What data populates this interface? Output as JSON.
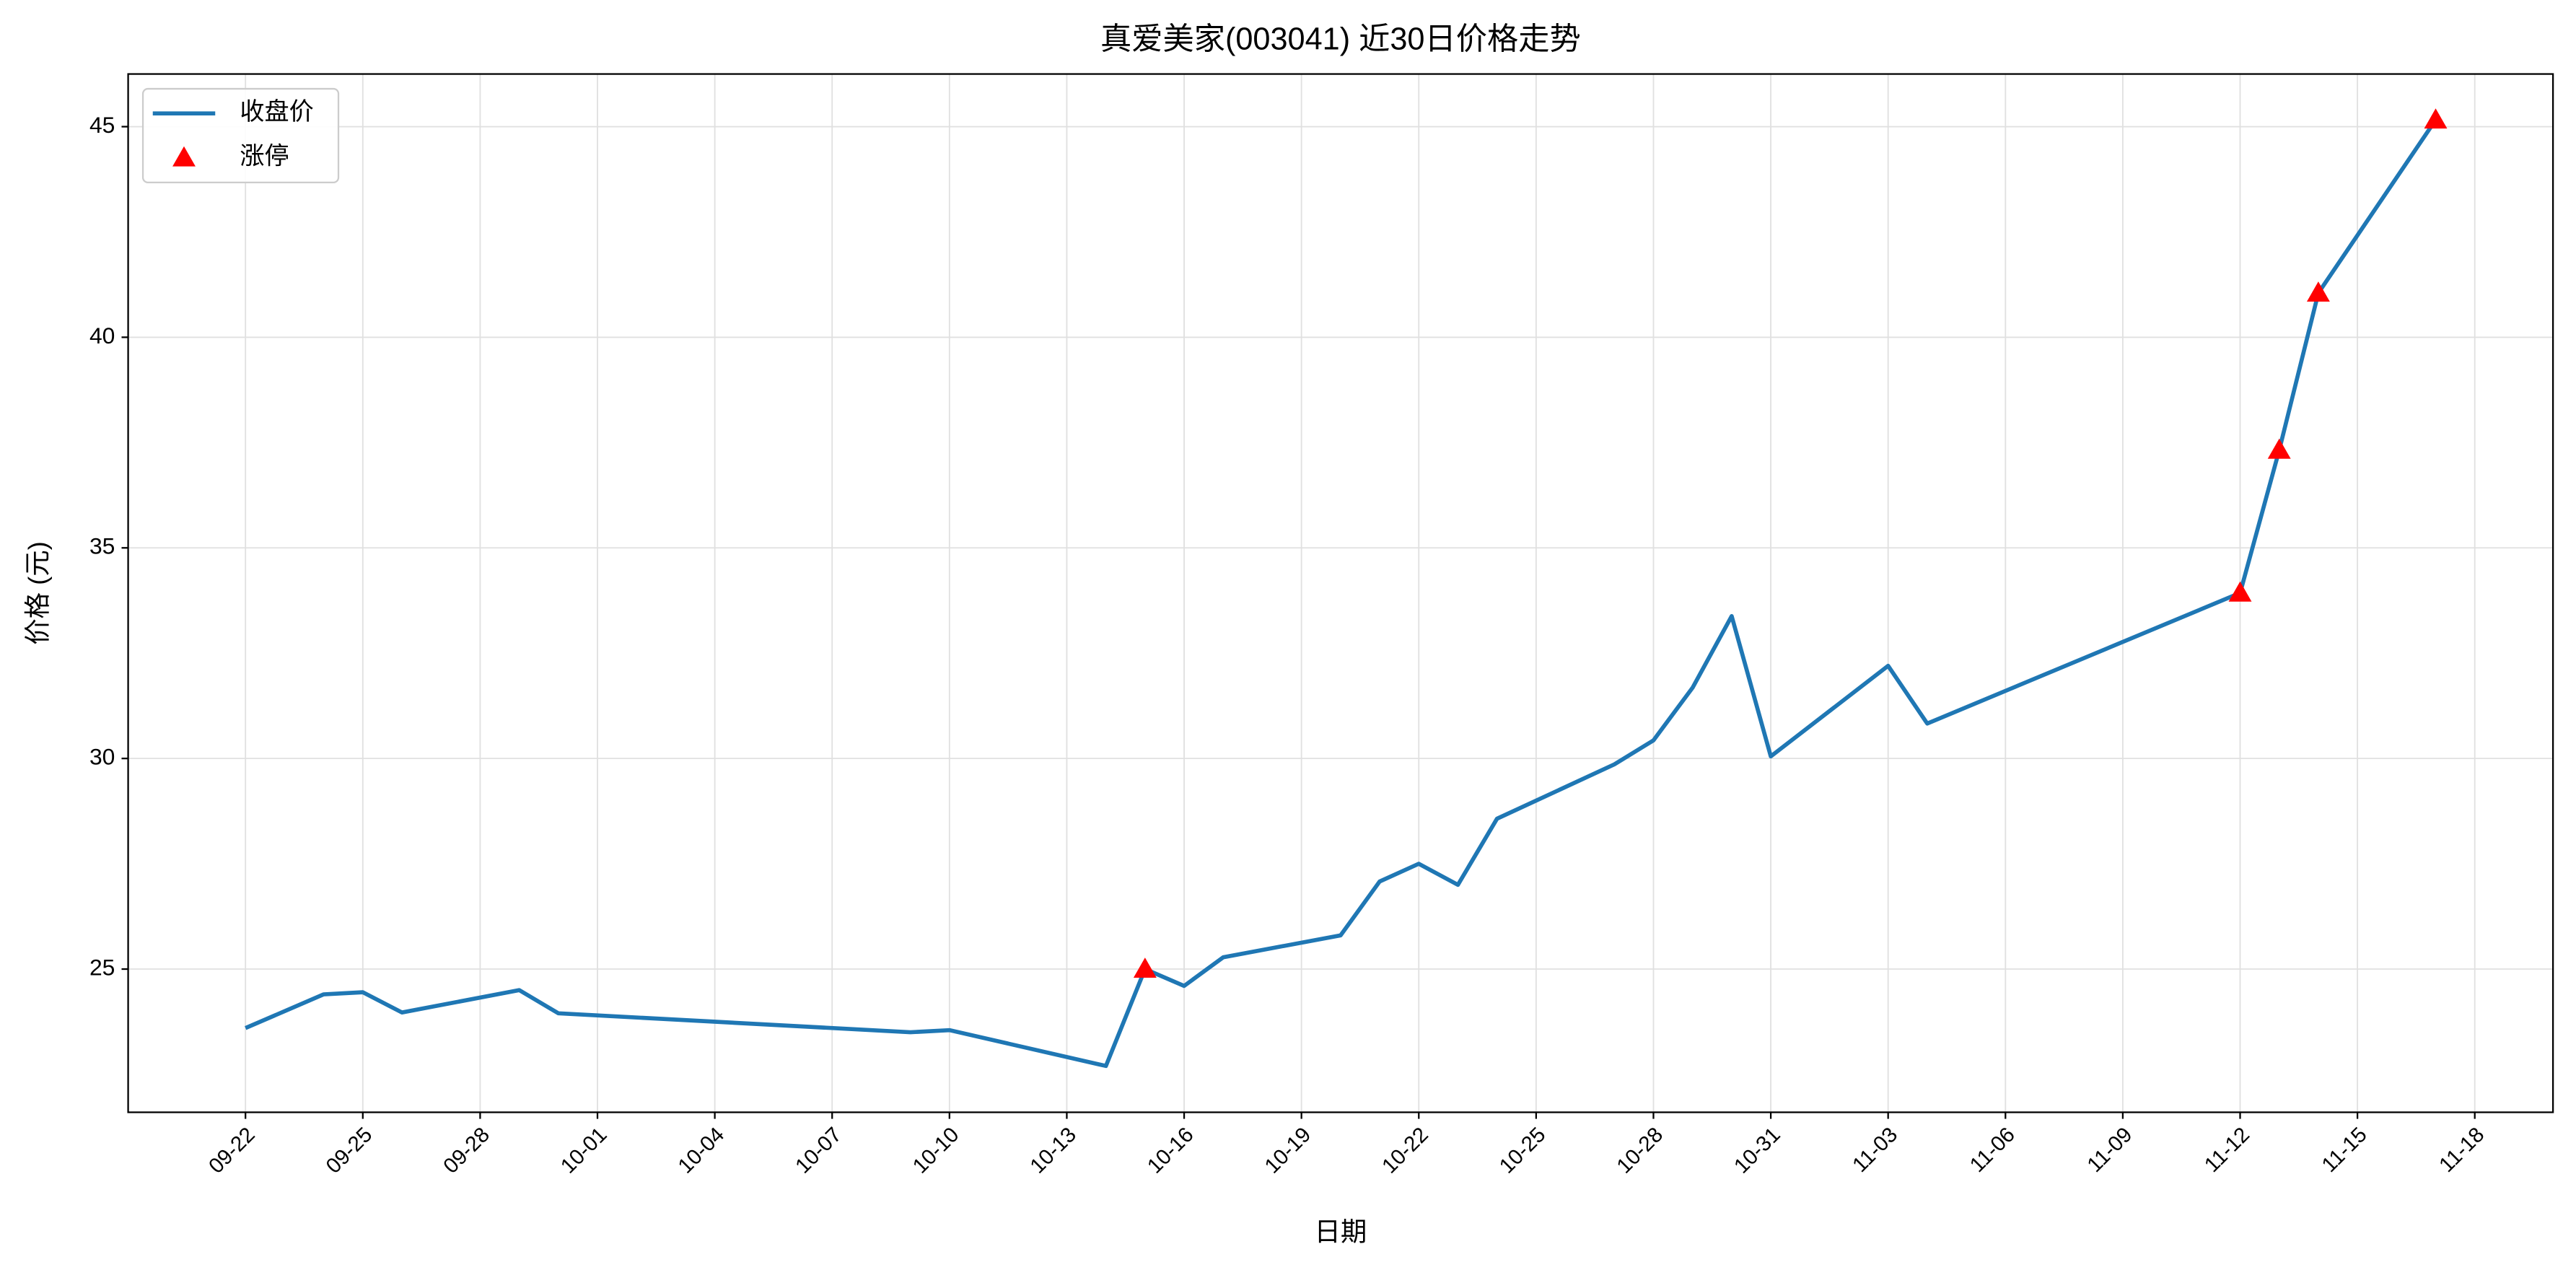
{
  "chart_data": {
    "type": "line",
    "title": "真爱美家(003041) 近30日价格走势",
    "x_label": "日期",
    "y_label": "价格 (元)",
    "series": [
      {
        "name": "收盘价",
        "color": "#1f77b4",
        "style": "line",
        "x": [
          "09-22",
          "09-24",
          "09-25",
          "09-26",
          "09-29",
          "09-30",
          "10-09",
          "10-10",
          "10-14",
          "10-15",
          "10-16",
          "10-17",
          "10-20",
          "10-21",
          "10-22",
          "10-23",
          "10-24",
          "10-27",
          "10-28",
          "10-29",
          "10-30",
          "10-31",
          "11-03",
          "11-04",
          "11-12",
          "11-13",
          "11-14",
          "11-17"
        ],
        "values": [
          23.6,
          24.4,
          24.45,
          23.97,
          24.5,
          23.95,
          23.5,
          23.55,
          22.7,
          25.0,
          24.6,
          25.28,
          25.8,
          27.08,
          27.5,
          27.0,
          28.57,
          29.86,
          30.43,
          31.68,
          33.38,
          30.05,
          32.2,
          30.83,
          33.93,
          37.32,
          41.05,
          45.16
        ]
      },
      {
        "name": "涨停",
        "color": "#ff0000",
        "style": "triangle",
        "x": [
          "10-15",
          "11-12",
          "11-13",
          "11-14",
          "11-17"
        ],
        "values": [
          25.0,
          33.93,
          37.32,
          41.05,
          45.16
        ]
      }
    ],
    "xlim": [
      "09-19",
      "11-20"
    ],
    "xticks": [
      "09-22",
      "09-25",
      "09-28",
      "10-01",
      "10-04",
      "10-07",
      "10-10",
      "10-13",
      "10-16",
      "10-19",
      "10-22",
      "10-25",
      "10-28",
      "10-31",
      "11-03",
      "11-06",
      "11-09",
      "11-12",
      "11-15",
      "11-18"
    ],
    "ylim": [
      21.6,
      46.25
    ],
    "yticks": [
      25,
      30,
      35,
      40,
      45
    ],
    "grid": true,
    "legend": "upper-left"
  }
}
